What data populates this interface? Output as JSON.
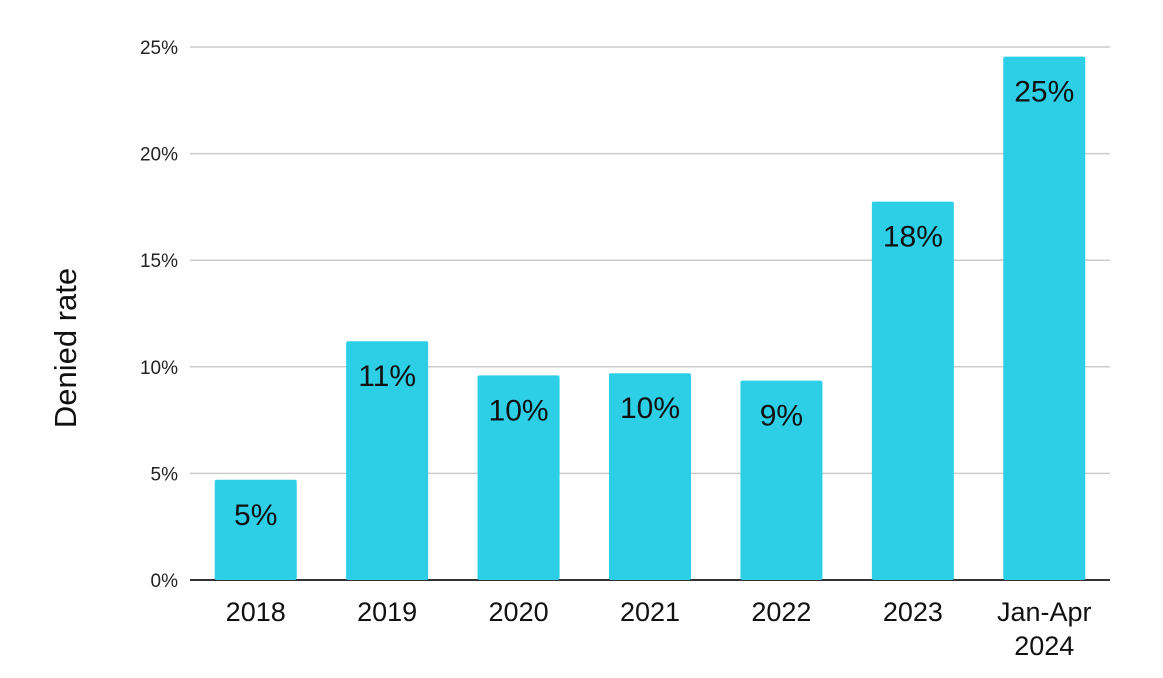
{
  "chart_data": {
    "type": "bar",
    "categories": [
      [
        "2018"
      ],
      [
        "2019"
      ],
      [
        "2020"
      ],
      [
        "2021"
      ],
      [
        "2022"
      ],
      [
        "2023"
      ],
      [
        "Jan-Apr",
        "2024"
      ]
    ],
    "values": [
      4.7,
      11.2,
      9.6,
      9.7,
      9.35,
      17.75,
      24.55
    ],
    "data_labels": [
      "5%",
      "11%",
      "10%",
      "10%",
      "9%",
      "18%",
      "25%"
    ],
    "ylabel": "Denied rate",
    "xlabel": "",
    "ylim": [
      0,
      25
    ],
    "yticks": [
      0,
      5,
      10,
      15,
      20,
      25
    ],
    "ytick_labels": [
      "0%",
      "5%",
      "10%",
      "15%",
      "20%",
      "25%"
    ],
    "grid": true,
    "legend": "none",
    "colors": {
      "bar": "#2ccfe6",
      "grid": "#cccccc",
      "baseline": "#333333"
    }
  }
}
